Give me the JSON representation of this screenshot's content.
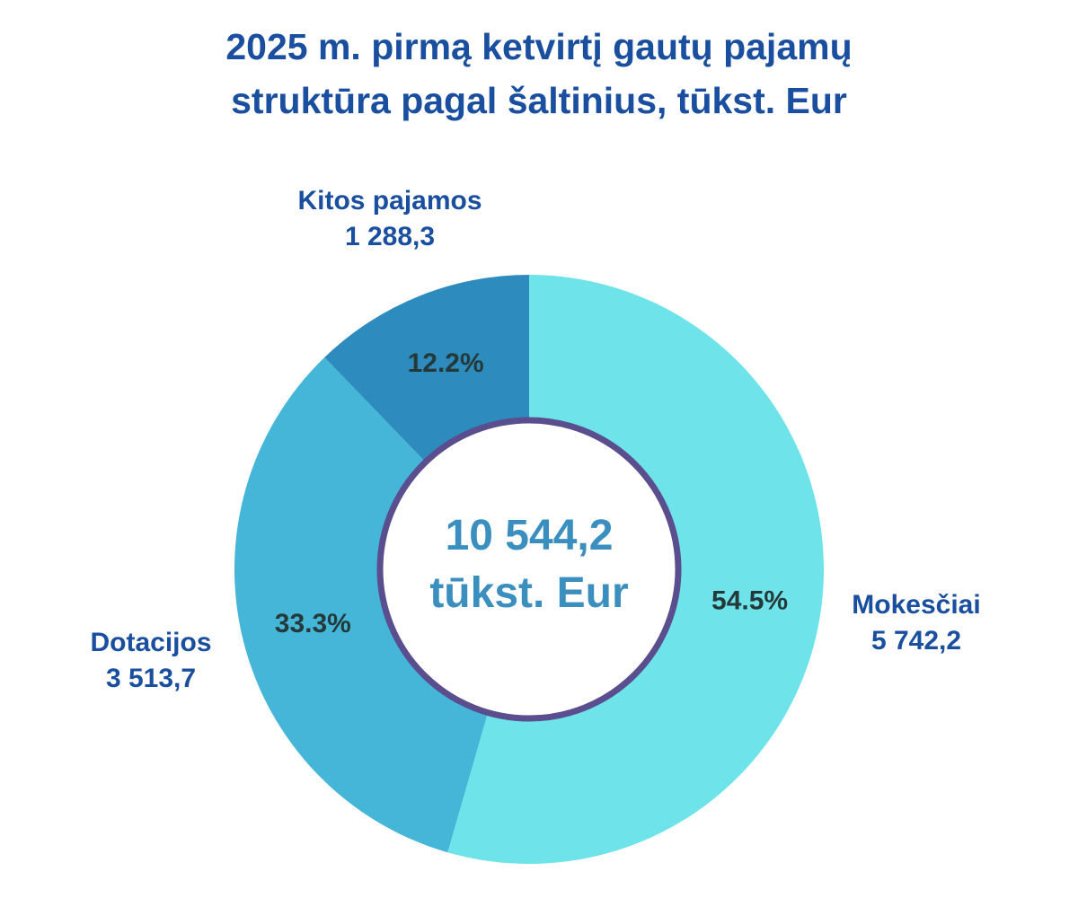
{
  "title_lines": [
    "2025 m. pirmą ketvirtį gautų pajamų",
    "struktūra pagal šaltinius, tūkst. Eur"
  ],
  "center_text": [
    "10 544,2",
    "tūkst. Eur"
  ],
  "colors": {
    "title": "#1a4fa0",
    "mokesciai": "#6ee3e9",
    "dotacijos": "#45b6d8",
    "kitos": "#2d8bbd",
    "center_ring": "#5a4e8e",
    "center_text": "#3a8fbf",
    "percent_text": "#243a3a"
  },
  "chart_data": {
    "type": "pie",
    "donut": true,
    "title": "2025 m. pirmą ketvirtį gautų pajamų struktūra pagal šaltinius, tūkst. Eur",
    "total": "10 544,2",
    "total_unit": "tūkst. Eur",
    "slices": [
      {
        "name": "Mokesčiai",
        "value": 5742.2,
        "value_label": "5 742,2",
        "percent": 54.5,
        "percent_label": "54.5%"
      },
      {
        "name": "Dotacijos",
        "value": 3513.7,
        "value_label": "3 513,7",
        "percent": 33.3,
        "percent_label": "33.3%"
      },
      {
        "name": "Kitos pajamos",
        "value": 1288.3,
        "value_label": "1 288,3",
        "percent": 12.2,
        "percent_label": "12.2%"
      }
    ],
    "start_angle_deg": 0,
    "direction": "clockwise",
    "legend": "none"
  }
}
